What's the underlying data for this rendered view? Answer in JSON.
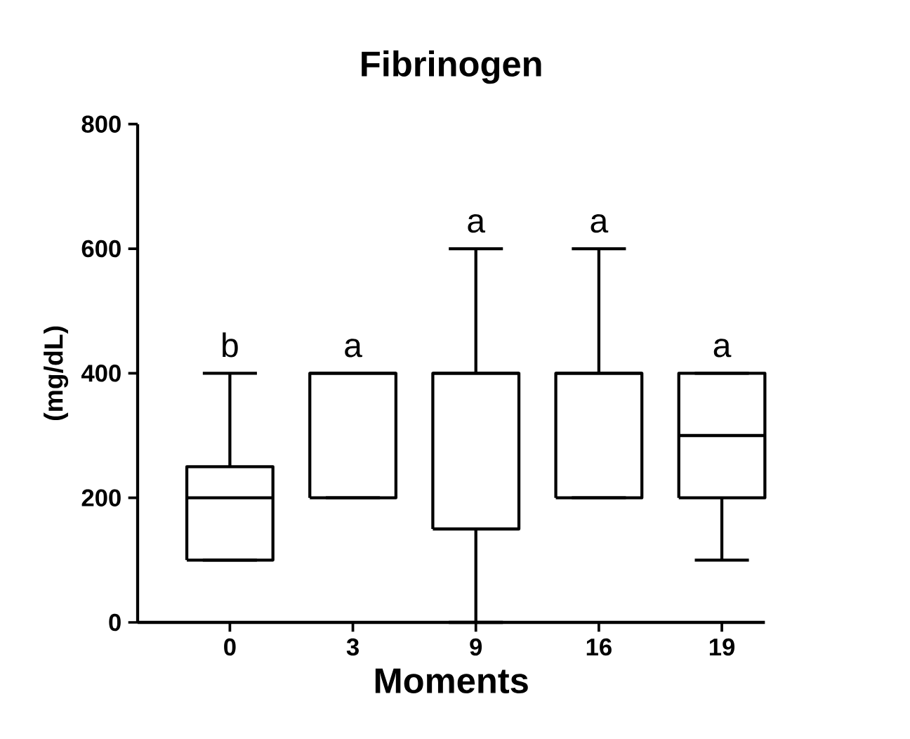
{
  "chart_data": {
    "type": "box",
    "title": "Fibrinogen",
    "xlabel": "Moments",
    "ylabel": "(mg/dL)",
    "categories": [
      "0",
      "3",
      "9",
      "16",
      "19"
    ],
    "boxes": [
      {
        "low": 100,
        "q1": 100,
        "median": 200,
        "q3": 250,
        "high": 400
      },
      {
        "low": 200,
        "q1": 200,
        "median": 400,
        "q3": 400,
        "high": 400
      },
      {
        "low": 0,
        "q1": 150,
        "median": 400,
        "q3": 400,
        "high": 600
      },
      {
        "low": 200,
        "q1": 200,
        "median": 400,
        "q3": 400,
        "high": 600
      },
      {
        "low": 100,
        "q1": 200,
        "median": 300,
        "q3": 400,
        "high": 400
      }
    ],
    "ylim": [
      0,
      800
    ],
    "yticks": [
      0,
      200,
      400,
      600,
      800
    ],
    "annotations": [
      "b",
      "a",
      "a",
      "a",
      "a"
    ]
  }
}
